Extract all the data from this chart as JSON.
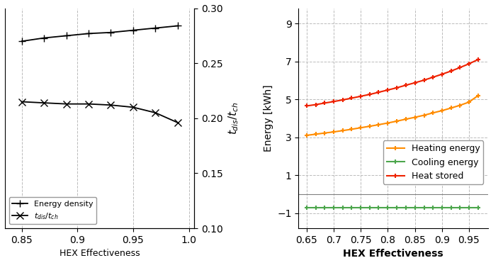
{
  "left": {
    "x": [
      0.85,
      0.87,
      0.89,
      0.91,
      0.93,
      0.95,
      0.97,
      0.99
    ],
    "energy_density": [
      0.27,
      0.273,
      0.275,
      0.277,
      0.278,
      0.28,
      0.282,
      0.284
    ],
    "t_ratio": [
      0.215,
      0.214,
      0.213,
      0.213,
      0.212,
      0.21,
      0.205,
      0.196
    ],
    "xlim": [
      0.835,
      1.005
    ],
    "xticks": [
      0.85,
      0.9,
      0.95,
      1.0
    ],
    "right_ylim": [
      0.1,
      0.3
    ],
    "right_yticks": [
      0.1,
      0.15,
      0.2,
      0.25,
      0.3
    ],
    "legend_energy": "Energy density",
    "legend_ratio": "$t_{dis}/t_{ch}$",
    "xlabel": "HEX Effectiveness",
    "right_ylabel": "$t_{dis}/t_{ch}$"
  },
  "right": {
    "x": [
      0.65,
      0.667,
      0.683,
      0.7,
      0.717,
      0.733,
      0.75,
      0.767,
      0.783,
      0.8,
      0.817,
      0.833,
      0.85,
      0.867,
      0.883,
      0.9,
      0.917,
      0.933,
      0.95,
      0.967
    ],
    "heating": [
      3.1,
      3.16,
      3.22,
      3.28,
      3.35,
      3.42,
      3.5,
      3.58,
      3.66,
      3.75,
      3.85,
      3.95,
      4.05,
      4.16,
      4.28,
      4.4,
      4.54,
      4.68,
      4.85,
      5.2
    ],
    "cooling": [
      -0.72,
      -0.72,
      -0.72,
      -0.72,
      -0.72,
      -0.72,
      -0.72,
      -0.72,
      -0.72,
      -0.72,
      -0.72,
      -0.72,
      -0.72,
      -0.72,
      -0.72,
      -0.72,
      -0.72,
      -0.72,
      -0.72,
      -0.72
    ],
    "heat_stored": [
      4.65,
      4.72,
      4.8,
      4.88,
      4.97,
      5.06,
      5.16,
      5.26,
      5.37,
      5.49,
      5.61,
      5.74,
      5.87,
      6.01,
      6.16,
      6.32,
      6.49,
      6.67,
      6.87,
      7.1
    ],
    "xlim": [
      0.635,
      0.985
    ],
    "xticks": [
      0.65,
      0.7,
      0.75,
      0.8,
      0.85,
      0.9,
      0.95
    ],
    "ylim": [
      -1.8,
      9.8
    ],
    "yticks": [
      -1,
      1,
      3,
      5,
      7,
      9
    ],
    "xlabel": "HEX Effectiveness",
    "ylabel": "Energy [kWh]",
    "heating_color": "#FF8C00",
    "cooling_color": "#4CA64C",
    "heat_stored_color": "#EE2200",
    "legend_heating": "Heating energy",
    "legend_cooling": "Cooling energy",
    "legend_heat_stored": "Heat stored"
  },
  "bg_color": "#FFFFFF",
  "grid_color": "#BBBBBB",
  "grid_style": "--"
}
